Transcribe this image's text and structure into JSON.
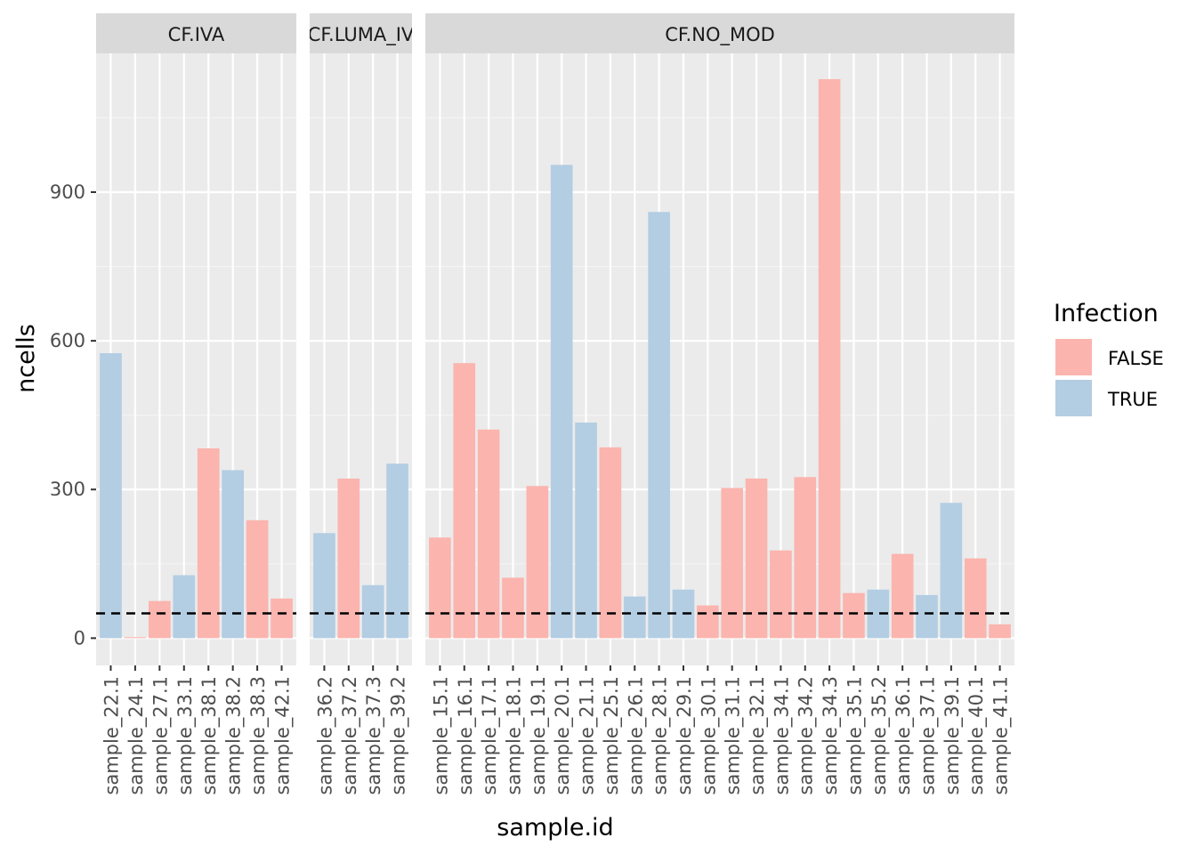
{
  "chart_data": {
    "type": "bar",
    "xlabel": "sample.id",
    "ylabel": "ncells",
    "ylim": [
      -55,
      1180
    ],
    "yticks": [
      0,
      300,
      600,
      900
    ],
    "reference_line": {
      "y": 50,
      "style": "dashed"
    },
    "legend": {
      "title": "Infection",
      "position": "right",
      "entries": [
        {
          "label": "FALSE",
          "color": "#FBB4AE"
        },
        {
          "label": "TRUE",
          "color": "#B3CDE3"
        }
      ]
    },
    "panels": [
      {
        "label": "CF.IVA",
        "categories": [
          "sample_22.1",
          "sample_24.1",
          "sample_27.1",
          "sample_33.1",
          "sample_38.1",
          "sample_38.2",
          "sample_38.3",
          "sample_42.1"
        ],
        "values": [
          575,
          2,
          75,
          127,
          383,
          339,
          238,
          80
        ],
        "infection": [
          "TRUE",
          "FALSE",
          "FALSE",
          "TRUE",
          "FALSE",
          "TRUE",
          "FALSE",
          "FALSE"
        ]
      },
      {
        "label": "CF.LUMA_IV",
        "categories": [
          "sample_36.2",
          "sample_37.2",
          "sample_37.3",
          "sample_39.2"
        ],
        "values": [
          212,
          322,
          107,
          352
        ],
        "infection": [
          "TRUE",
          "FALSE",
          "TRUE",
          "TRUE"
        ]
      },
      {
        "label": "CF.NO_MOD",
        "categories": [
          "sample_15.1",
          "sample_16.1",
          "sample_17.1",
          "sample_18.1",
          "sample_19.1",
          "sample_20.1",
          "sample_21.1",
          "sample_25.1",
          "sample_26.1",
          "sample_28.1",
          "sample_29.1",
          "sample_30.1",
          "sample_31.1",
          "sample_32.1",
          "sample_34.1",
          "sample_34.2",
          "sample_34.3",
          "sample_35.1",
          "sample_35.2",
          "sample_36.1",
          "sample_37.1",
          "sample_39.1",
          "sample_40.1",
          "sample_41.1"
        ],
        "values": [
          203,
          555,
          421,
          122,
          307,
          955,
          435,
          385,
          84,
          860,
          98,
          66,
          303,
          322,
          177,
          325,
          1128,
          91,
          98,
          170,
          87,
          273,
          161,
          28
        ],
        "infection": [
          "FALSE",
          "FALSE",
          "FALSE",
          "FALSE",
          "FALSE",
          "TRUE",
          "TRUE",
          "FALSE",
          "TRUE",
          "TRUE",
          "TRUE",
          "FALSE",
          "FALSE",
          "FALSE",
          "FALSE",
          "FALSE",
          "FALSE",
          "FALSE",
          "TRUE",
          "FALSE",
          "TRUE",
          "TRUE",
          "FALSE",
          "FALSE"
        ]
      }
    ]
  }
}
